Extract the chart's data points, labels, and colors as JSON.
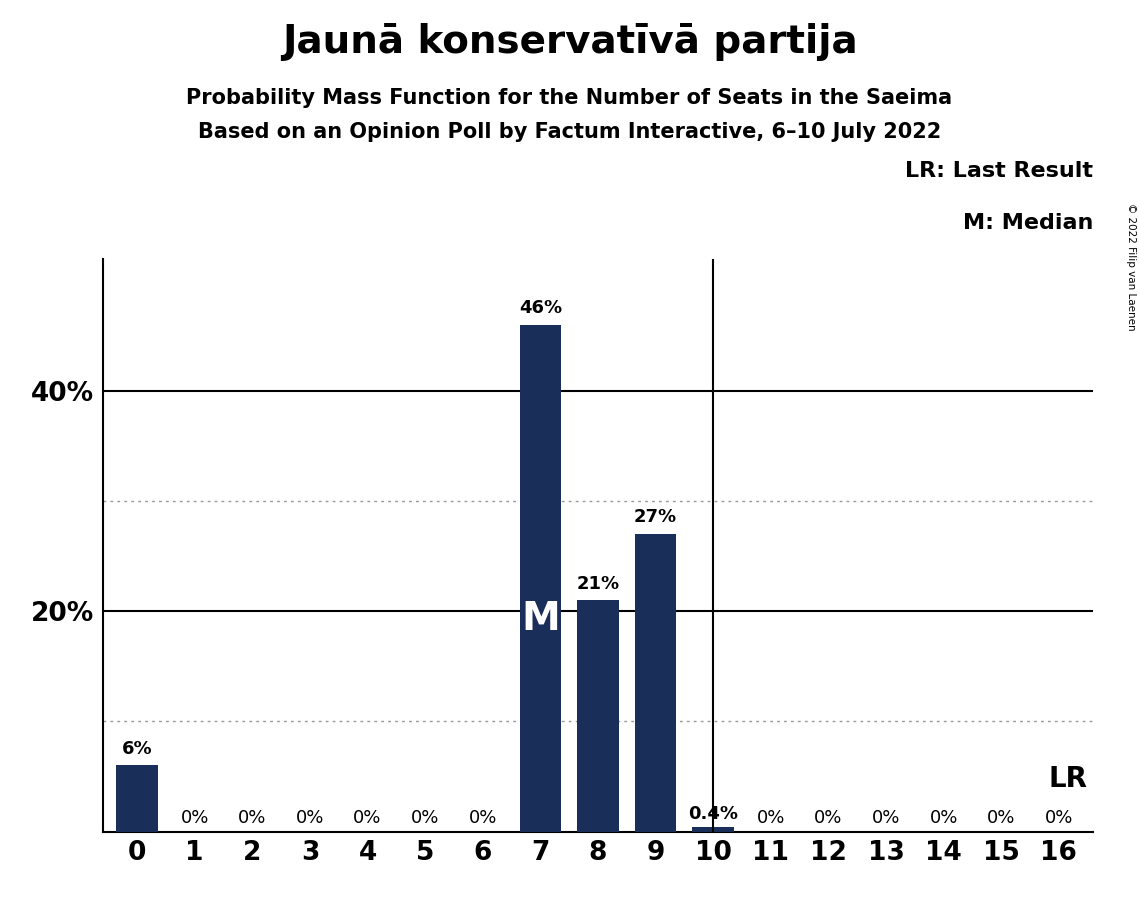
{
  "title": "Jaunā konservatīvā partija",
  "subtitle1": "Probability Mass Function for the Number of Seats in the Saeima",
  "subtitle2": "Based on an Opinion Poll by Factum Interactive, 6–10 July 2022",
  "copyright": "© 2022 Filip van Laenen",
  "categories": [
    0,
    1,
    2,
    3,
    4,
    5,
    6,
    7,
    8,
    9,
    10,
    11,
    12,
    13,
    14,
    15,
    16
  ],
  "values": [
    0.06,
    0.0,
    0.0,
    0.0,
    0.0,
    0.0,
    0.0,
    0.46,
    0.21,
    0.27,
    0.004,
    0.0,
    0.0,
    0.0,
    0.0,
    0.0,
    0.0
  ],
  "bar_color": "#1a2e5a",
  "median": 7,
  "last_result": 10,
  "ylim": [
    0,
    0.52
  ],
  "background_color": "#ffffff",
  "grid_major_color": "#000000",
  "grid_minor_color": "#999999",
  "legend_LR": "LR: Last Result",
  "legend_M": "M: Median",
  "bar_labels": [
    "6%",
    "0%",
    "0%",
    "0%",
    "0%",
    "0%",
    "0%",
    "46%",
    "21%",
    "27%",
    "0.4%",
    "0%",
    "0%",
    "0%",
    "0%",
    "0%",
    "0%"
  ],
  "title_fontsize": 28,
  "subtitle_fontsize": 15,
  "axis_fontsize": 19,
  "bar_label_fontsize": 13,
  "legend_fontsize": 16
}
